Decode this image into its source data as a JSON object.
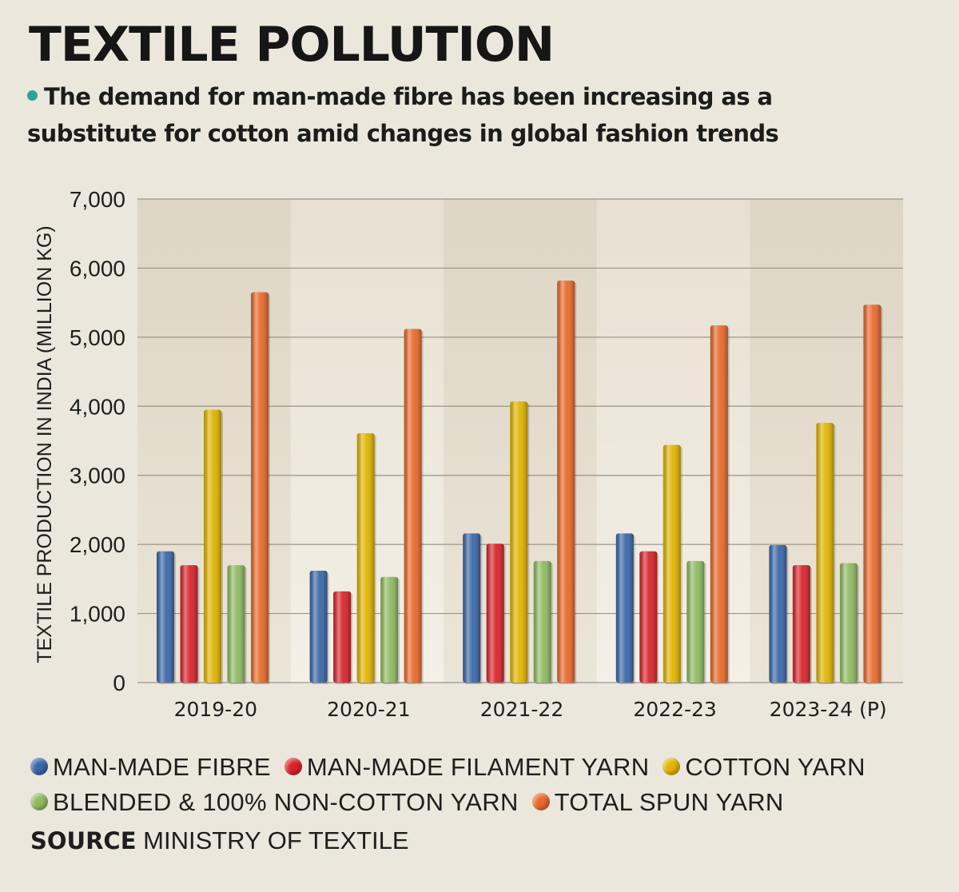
{
  "title": "TEXTILE POLLUTION",
  "subtitle": "The demand for man-made fibre has been increasing as a substitute for cotton amid changes in global fashion trends",
  "source": {
    "label": "SOURCE",
    "text": " MINISTRY OF TEXTILE"
  },
  "chart_data": {
    "type": "bar",
    "ylabel": "TEXTILE PRODUCTION IN INDIA (MILLION KG)",
    "xlabel": "",
    "ylim": [
      0,
      7000
    ],
    "yticks": [
      "0",
      "1,000",
      "2,000",
      "3,000",
      "4,000",
      "5,000",
      "6,000",
      "7,000"
    ],
    "grid": true,
    "legend_position": "bottom",
    "categories": [
      "2019-20",
      "2020-21",
      "2021-22",
      "2022-23",
      "2023-24 (P)"
    ],
    "series": [
      {
        "name": "MAN-MADE FIBRE",
        "color": "#3a66a8",
        "values": [
          1900,
          1620,
          2160,
          2160,
          1990
        ]
      },
      {
        "name": "MAN-MADE FILAMENT YARN",
        "color": "#d8232a",
        "values": [
          1700,
          1320,
          2010,
          1900,
          1700
        ]
      },
      {
        "name": "COTTON YARN",
        "color": "#e0b400",
        "values": [
          3950,
          3610,
          4070,
          3440,
          3760
        ]
      },
      {
        "name": "BLENDED & 100% NON-COTTON YARN",
        "color": "#8fba62",
        "values": [
          1700,
          1530,
          1760,
          1760,
          1730
        ]
      },
      {
        "name": "TOTAL SPUN YARN",
        "color": "#e8692a",
        "values": [
          5650,
          5120,
          5820,
          5170,
          5470
        ]
      }
    ]
  }
}
